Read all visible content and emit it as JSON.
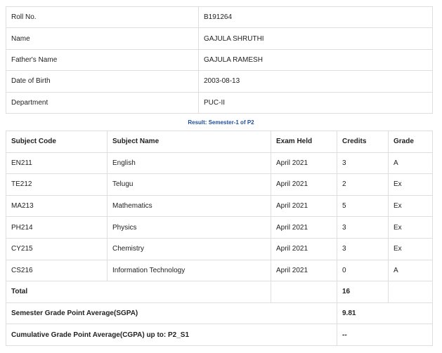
{
  "student": [
    {
      "label": "Roll No.",
      "value": "B191264"
    },
    {
      "label": "Name",
      "value": "GAJULA SHRUTHI"
    },
    {
      "label": "Father's Name",
      "value": "GAJULA RAMESH"
    },
    {
      "label": "Date of Birth",
      "value": "2003-08-13"
    },
    {
      "label": "Department",
      "value": "PUC-II"
    }
  ],
  "caption": "Result: Semester-1 of P2",
  "results": {
    "headers": [
      "Subject Code",
      "Subject Name",
      "Exam Held",
      "Credits",
      "Grade"
    ],
    "rows": [
      [
        "EN211",
        "English",
        "April 2021",
        "3",
        "A"
      ],
      [
        "TE212",
        "Telugu",
        "April 2021",
        "2",
        "Ex"
      ],
      [
        "MA213",
        "Mathematics",
        "April 2021",
        "5",
        "Ex"
      ],
      [
        "PH214",
        "Physics",
        "April 2021",
        "3",
        "Ex"
      ],
      [
        "CY215",
        "Chemistry",
        "April 2021",
        "3",
        "Ex"
      ],
      [
        "CS216",
        "Information Technology",
        "April 2021",
        "0",
        "A"
      ]
    ],
    "total": {
      "label": "Total",
      "credits": "16"
    },
    "sgpa": {
      "label": "Semester Grade Point Average(SGPA)",
      "value": "9.81"
    },
    "cgpa": {
      "label": "Cumulative Grade Point Average(CGPA) up to: P2_S1",
      "value": "--"
    }
  },
  "colors": {
    "caption": "#1f4fa0",
    "border": "#dedede"
  }
}
